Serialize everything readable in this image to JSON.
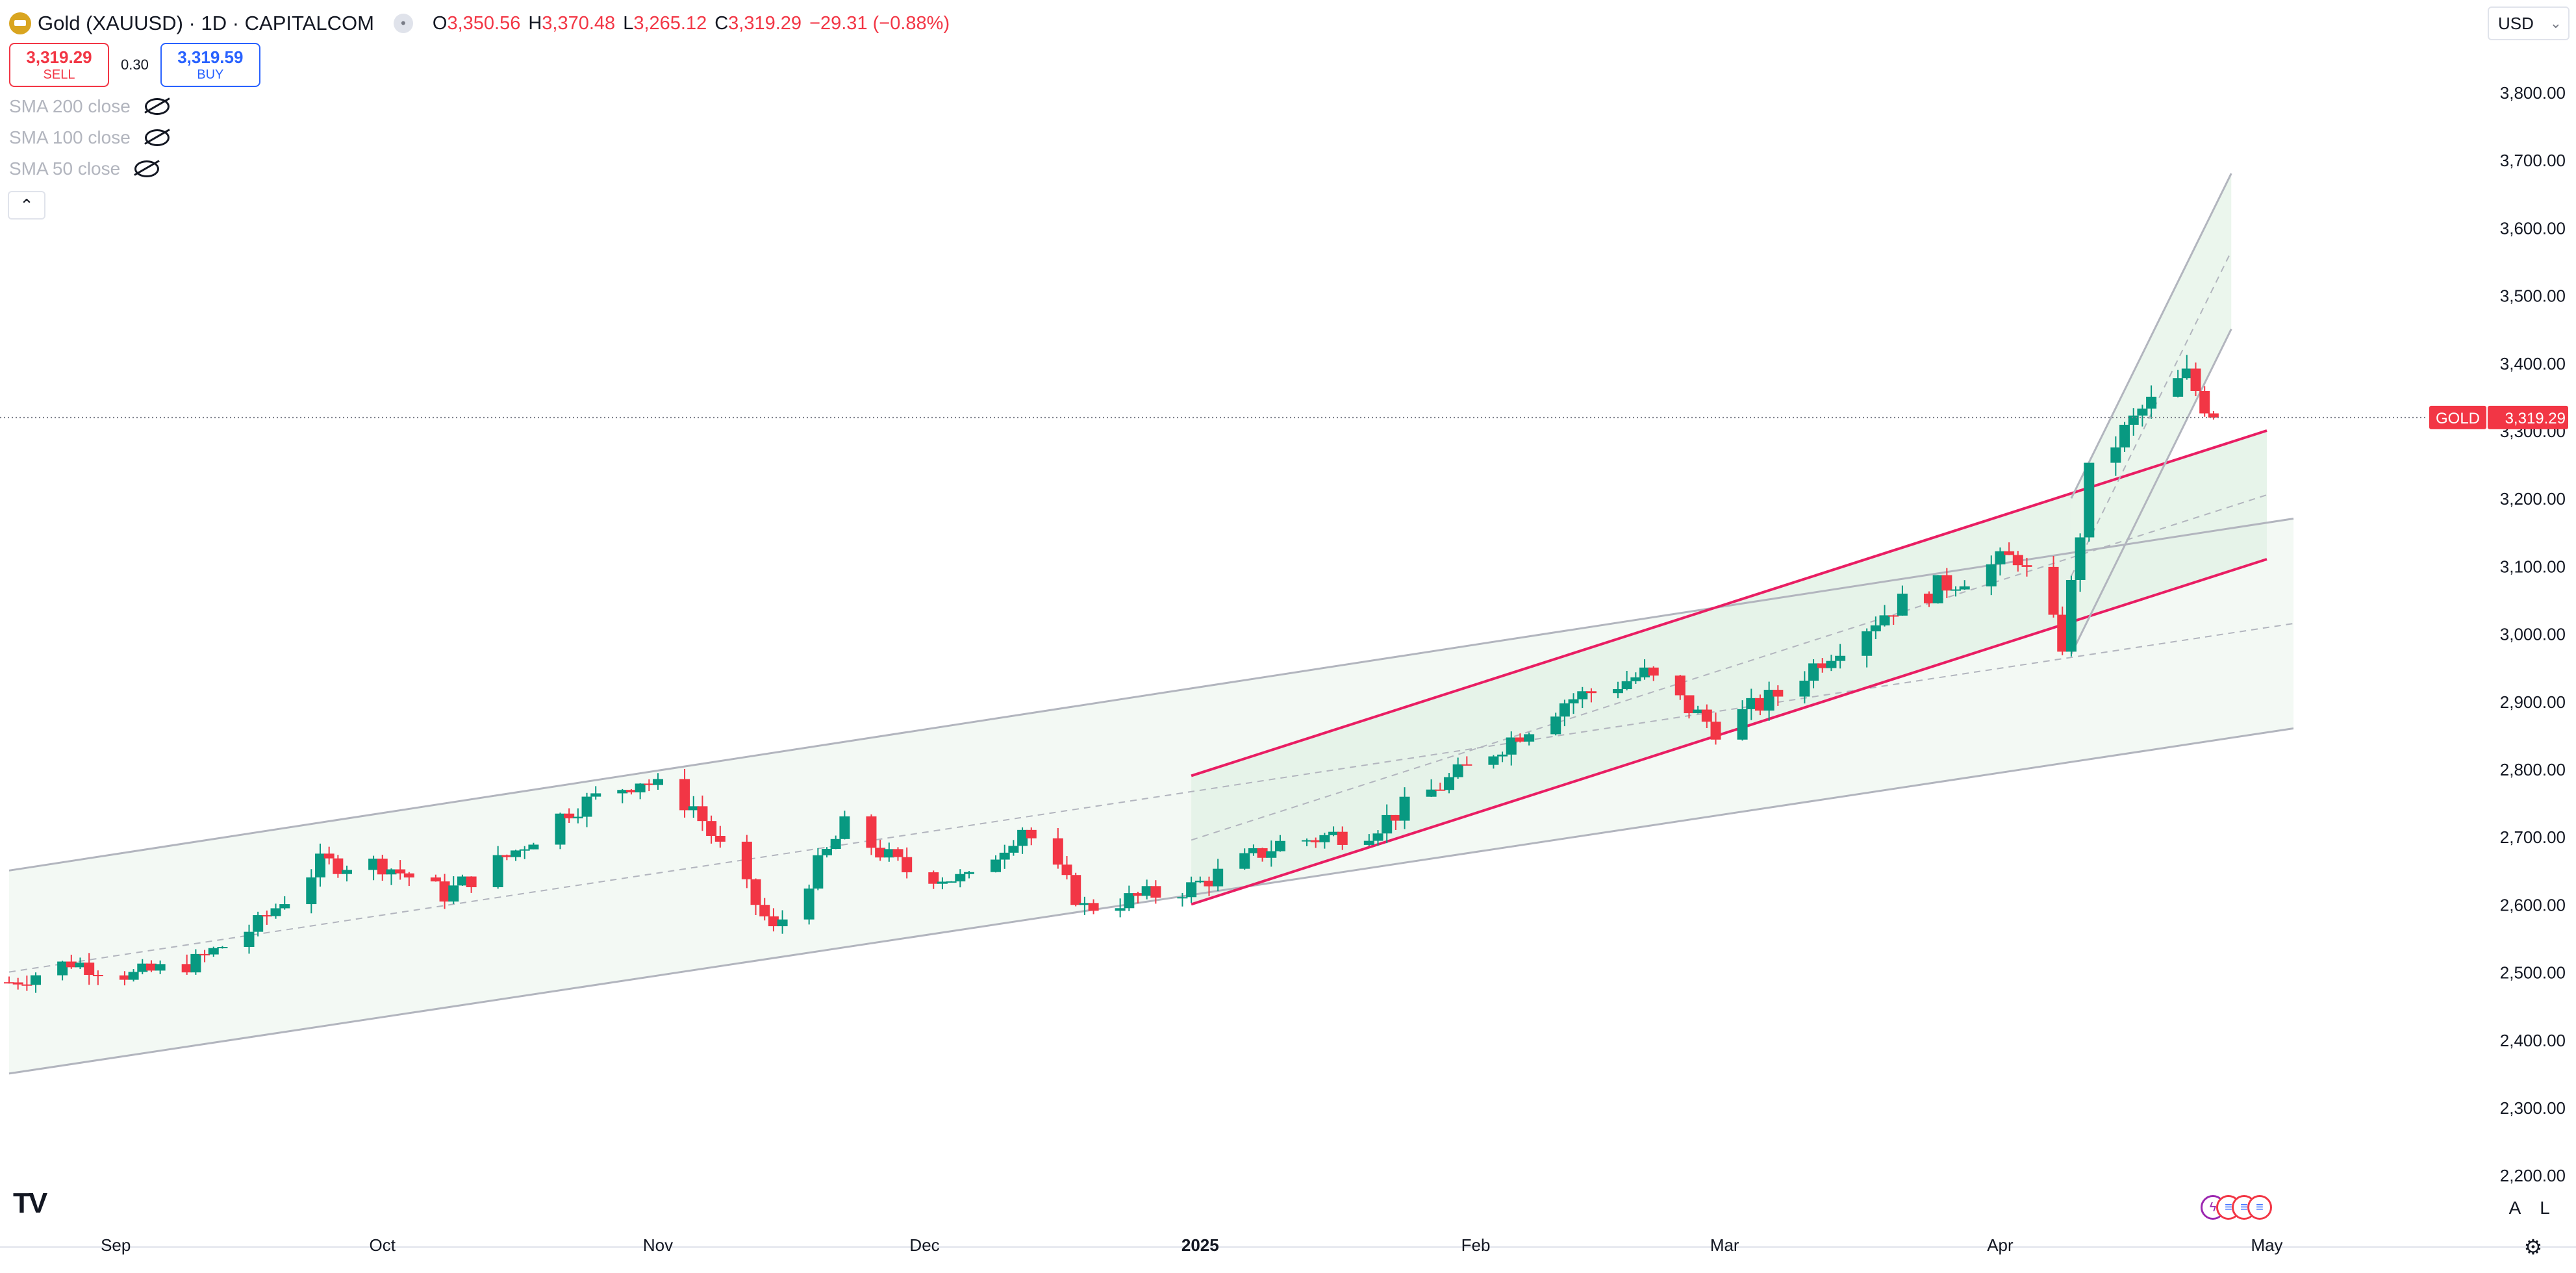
{
  "header": {
    "title": "Gold (XAUUSD) · 1D · CAPITALCOM",
    "symbol_icon": "gold-bars-icon",
    "ohlc": {
      "o_label": "O",
      "o": "3,350.56",
      "h_label": "H",
      "h": "3,370.48",
      "l_label": "L",
      "l": "3,265.12",
      "c_label": "C",
      "c": "3,319.29",
      "change": "−29.31 (−0.88%)"
    }
  },
  "trade": {
    "sell_price": "3,319.29",
    "sell_label": "SELL",
    "spread": "0.30",
    "buy_price": "3,319.59",
    "buy_label": "BUY"
  },
  "indicators": [
    {
      "label": "SMA 200 close",
      "icon": "eye-hidden-icon"
    },
    {
      "label": "SMA 100 close",
      "icon": "eye-hidden-icon"
    },
    {
      "label": "SMA 50 close",
      "icon": "eye-hidden-icon"
    }
  ],
  "collapse_icon": "chevron-up-icon",
  "currency": {
    "value": "USD",
    "icon": "chevron-down-icon"
  },
  "price_axis": {
    "labels": [
      "3,800.00",
      "3,700.00",
      "3,600.00",
      "3,500.00",
      "3,400.00",
      "3,300.00",
      "3,200.00",
      "3,100.00",
      "3,000.00",
      "2,900.00",
      "2,800.00",
      "2,700.00",
      "2,600.00",
      "2,500.00",
      "2,400.00",
      "2,300.00",
      "2,200.00"
    ]
  },
  "time_axis": {
    "labels": [
      "Sep",
      "Oct",
      "Nov",
      "Dec",
      "2025",
      "Feb",
      "Mar",
      "Apr",
      "May"
    ]
  },
  "last_price": {
    "symbol": "GOLD",
    "value": "3,319.29"
  },
  "bottom": {
    "logo": "TV",
    "scale_a": "A",
    "scale_l": "L",
    "settings_icon": "gear-icon"
  },
  "colors": {
    "up": "#089981",
    "down": "#f23645",
    "channel_pink": "#e91e63",
    "channel_gray": "#b2b5be",
    "fill_green": "#e8f5e9"
  },
  "chart_data": {
    "type": "candlestick",
    "symbol": "XAUUSD",
    "interval": "1D",
    "ylim": [
      2200,
      3800
    ],
    "x_range": [
      "2024-08-20",
      "2025-05-01"
    ],
    "close_points": [
      {
        "date": "2024-08-20",
        "close": 2485
      },
      {
        "date": "2024-08-27",
        "close": 2515
      },
      {
        "date": "2024-09-03",
        "close": 2495
      },
      {
        "date": "2024-09-10",
        "close": 2515
      },
      {
        "date": "2024-09-17",
        "close": 2570
      },
      {
        "date": "2024-09-24",
        "close": 2660
      },
      {
        "date": "2024-10-01",
        "close": 2660
      },
      {
        "date": "2024-10-08",
        "close": 2615
      },
      {
        "date": "2024-10-15",
        "close": 2670
      },
      {
        "date": "2024-10-22",
        "close": 2740
      },
      {
        "date": "2024-10-30",
        "close": 2785
      },
      {
        "date": "2024-11-05",
        "close": 2745
      },
      {
        "date": "2024-11-14",
        "close": 2560
      },
      {
        "date": "2024-11-22",
        "close": 2715
      },
      {
        "date": "2024-11-29",
        "close": 2650
      },
      {
        "date": "2024-12-06",
        "close": 2635
      },
      {
        "date": "2024-12-12",
        "close": 2715
      },
      {
        "date": "2024-12-19",
        "close": 2595
      },
      {
        "date": "2024-12-31",
        "close": 2625
      },
      {
        "date": "2025-01-10",
        "close": 2690
      },
      {
        "date": "2025-01-20",
        "close": 2710
      },
      {
        "date": "2025-01-31",
        "close": 2800
      },
      {
        "date": "2025-02-11",
        "close": 2900
      },
      {
        "date": "2025-02-20",
        "close": 2940
      },
      {
        "date": "2025-02-28",
        "close": 2860
      },
      {
        "date": "2025-03-07",
        "close": 2910
      },
      {
        "date": "2025-03-14",
        "close": 2985
      },
      {
        "date": "2025-03-20",
        "close": 3040
      },
      {
        "date": "2025-03-28",
        "close": 3085
      },
      {
        "date": "2025-04-03",
        "close": 3115
      },
      {
        "date": "2025-04-08",
        "close": 2985
      },
      {
        "date": "2025-04-11",
        "close": 3235
      },
      {
        "date": "2025-04-17",
        "close": 3330
      },
      {
        "date": "2025-04-22",
        "close": 3380
      },
      {
        "date": "2025-04-25",
        "close": 3319.29
      }
    ],
    "channels": [
      {
        "name": "outer",
        "upper": [
          [
            "2024-08-20",
            2650
          ],
          [
            "2025-05-04",
            3170
          ]
        ],
        "lower": [
          [
            "2024-08-20",
            2350
          ],
          [
            "2025-05-04",
            2860
          ]
        ]
      },
      {
        "name": "pink",
        "upper": [
          [
            "2024-12-31",
            2790
          ],
          [
            "2025-05-01",
            3300
          ]
        ],
        "lower": [
          [
            "2024-12-31",
            2600
          ],
          [
            "2025-05-01",
            3110
          ]
        ]
      },
      {
        "name": "steep",
        "upper": [
          [
            "2025-04-09",
            3200
          ],
          [
            "2025-04-27",
            3680
          ]
        ],
        "lower": [
          [
            "2025-04-09",
            2970
          ],
          [
            "2025-04-27",
            3450
          ]
        ]
      }
    ],
    "last_price": 3319.29
  }
}
